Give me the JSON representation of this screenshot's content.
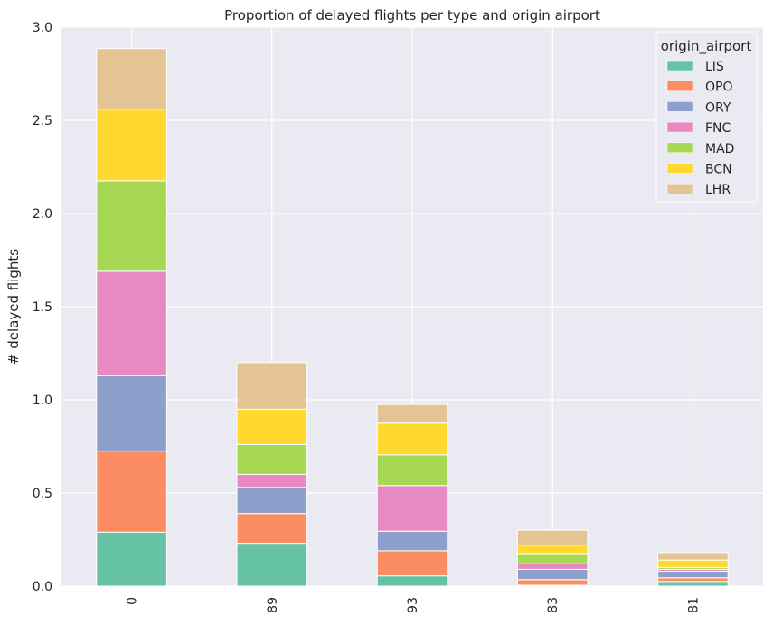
{
  "chart_data": {
    "type": "bar",
    "stacked": true,
    "title": "Proportion of delayed flights per type and origin airport",
    "xlabel": "",
    "ylabel": "# delayed flights",
    "ylim": [
      0,
      3.0
    ],
    "yticks": [
      "0.0",
      "0.5",
      "1.0",
      "1.5",
      "2.0",
      "2.5",
      "3.0"
    ],
    "categories": [
      "0",
      "89",
      "93",
      "83",
      "81"
    ],
    "legend": {
      "title": "origin_airport",
      "position": "top-right"
    },
    "grid": true,
    "series": [
      {
        "name": "LIS",
        "color": "#66c2a5",
        "values": [
          0.29,
          0.23,
          0.055,
          0.005,
          0.025
        ]
      },
      {
        "name": "OPO",
        "color": "#fc8d62",
        "values": [
          0.435,
          0.16,
          0.135,
          0.03,
          0.02
        ]
      },
      {
        "name": "ORY",
        "color": "#8da0cb",
        "values": [
          0.405,
          0.14,
          0.105,
          0.055,
          0.035
        ]
      },
      {
        "name": "FNC",
        "color": "#e78ac3",
        "values": [
          0.56,
          0.07,
          0.245,
          0.03,
          0.01
        ]
      },
      {
        "name": "MAD",
        "color": "#a6d854",
        "values": [
          0.485,
          0.16,
          0.165,
          0.055,
          0.01
        ]
      },
      {
        "name": "BCN",
        "color": "#ffd92f",
        "values": [
          0.385,
          0.19,
          0.17,
          0.045,
          0.04
        ]
      },
      {
        "name": "LHR",
        "color": "#e5c494",
        "values": [
          0.325,
          0.25,
          0.1,
          0.08,
          0.04
        ]
      }
    ]
  }
}
